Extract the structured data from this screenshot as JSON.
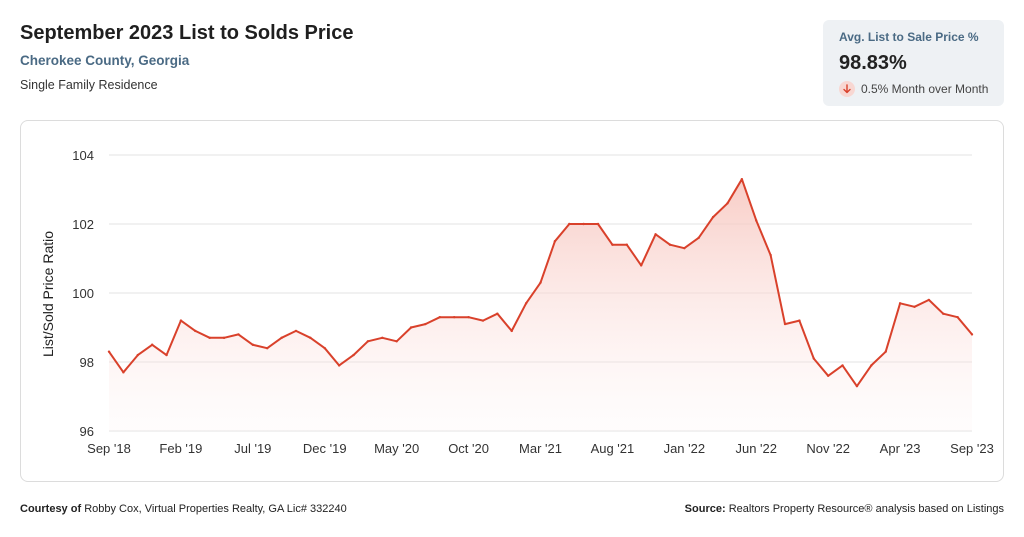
{
  "header": {
    "title": "September 2023 List to Solds Price",
    "location": "Cherokee County, Georgia",
    "property_type": "Single Family Residence"
  },
  "kpi": {
    "label": "Avg. List to Sale Price %",
    "value": "98.83%",
    "change": "0.5% Month over Month",
    "icon": "arrow-down-icon",
    "icon_color": "#d9412b"
  },
  "footer": {
    "courtesy_prefix": "Courtesy of",
    "courtesy_text": "Robby Cox, Virtual Properties Realty, GA Lic# 332240",
    "source_prefix": "Source:",
    "source_text": "Realtors Property Resource® analysis based on Listings"
  },
  "colors": {
    "line": "#d9412b",
    "fill_top": "#f7c4bc",
    "grid": "#e3e3e3"
  },
  "chart_data": {
    "type": "area",
    "ylabel": "List/Sold Price Ratio",
    "xlabel": "",
    "ylim": [
      96,
      104
    ],
    "yticks": [
      96,
      98,
      100,
      102,
      104
    ],
    "grid": true,
    "x_tick_labels": [
      "Sep '18",
      "Feb '19",
      "Jul '19",
      "Dec '19",
      "May '20",
      "Oct '20",
      "Mar '21",
      "Aug '21",
      "Jan '22",
      "Jun '22",
      "Nov '22",
      "Apr '23",
      "Sep '23"
    ],
    "x": [
      "Sep '18",
      "Oct '18",
      "Nov '18",
      "Dec '18",
      "Jan '19",
      "Feb '19",
      "Mar '19",
      "Apr '19",
      "May '19",
      "Jun '19",
      "Jul '19",
      "Aug '19",
      "Sep '19",
      "Oct '19",
      "Nov '19",
      "Dec '19",
      "Jan '20",
      "Feb '20",
      "Mar '20",
      "Apr '20",
      "May '20",
      "Jun '20",
      "Jul '20",
      "Aug '20",
      "Sep '20",
      "Oct '20",
      "Nov '20",
      "Dec '20",
      "Jan '21",
      "Feb '21",
      "Mar '21",
      "Apr '21",
      "May '21",
      "Jun '21",
      "Jul '21",
      "Aug '21",
      "Sep '21",
      "Oct '21",
      "Nov '21",
      "Dec '21",
      "Jan '22",
      "Feb '22",
      "Mar '22",
      "Apr '22",
      "May '22",
      "Jun '22",
      "Jul '22",
      "Aug '22",
      "Sep '22",
      "Oct '22",
      "Nov '22",
      "Dec '22",
      "Jan '23",
      "Feb '23",
      "Mar '23",
      "Apr '23",
      "May '23",
      "Jun '23",
      "Jul '23",
      "Aug '23",
      "Sep '23"
    ],
    "series": [
      {
        "values": [
          98.3,
          97.7,
          98.2,
          98.5,
          98.2,
          99.2,
          98.9,
          98.7,
          98.7,
          98.8,
          98.5,
          98.4,
          98.7,
          98.9,
          98.7,
          98.4,
          97.9,
          98.2,
          98.6,
          98.7,
          98.6,
          99.0,
          99.1,
          99.3,
          99.3,
          99.3,
          99.2,
          99.4,
          98.9,
          99.7,
          100.3,
          101.5,
          102.0,
          102.0,
          102.0,
          101.4,
          101.4,
          100.8,
          101.7,
          101.4,
          101.3,
          101.6,
          102.2,
          102.6,
          103.3,
          102.1,
          101.1,
          99.1,
          99.2,
          98.1,
          97.6,
          97.9,
          97.3,
          97.9,
          98.3,
          99.7,
          99.6,
          99.8,
          99.4,
          99.3,
          98.8
        ]
      }
    ]
  }
}
